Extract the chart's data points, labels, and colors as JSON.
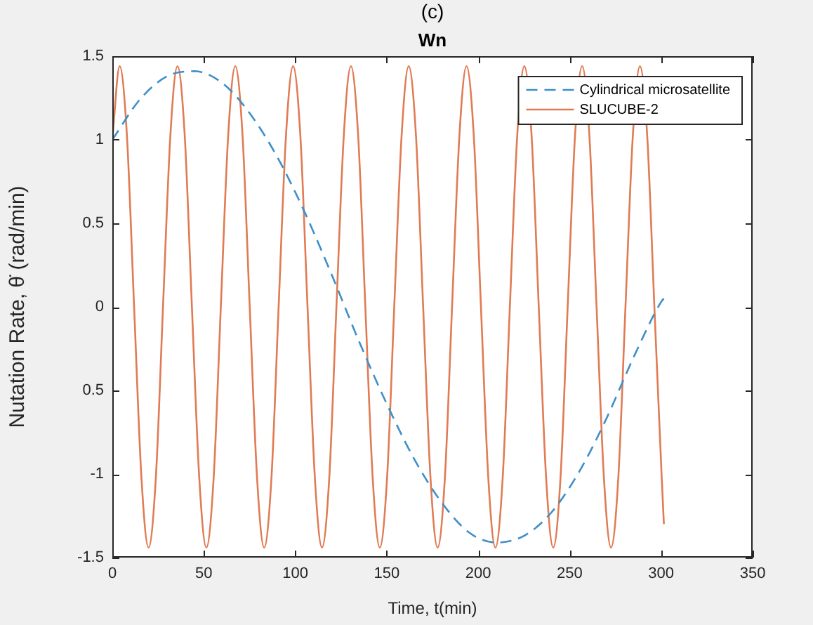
{
  "chart_data": {
    "type": "line",
    "title": "Wn",
    "xlabel": "Time, t(min)",
    "ylabel": "Nutation Rate, θ̇ (rad/min)",
    "annotations": [
      "(c)"
    ],
    "xlim": [
      0,
      350
    ],
    "xticks": [
      0,
      50,
      100,
      150,
      200,
      250,
      300,
      350
    ],
    "ylim": [
      -1.5,
      1.5
    ],
    "yticks": [
      -1.5,
      -1,
      {
        "value": -0.5,
        "label": "0.5"
      },
      0,
      0.5,
      1,
      1.5
    ],
    "grid": false,
    "legend": "top right",
    "marker": "none",
    "series": [
      {
        "name": "Cylindrical microsatellite",
        "color": "#3f8fc8",
        "line_style": "dashed",
        "x": [
          0,
          15,
          30,
          45,
          60,
          75,
          90,
          105,
          120,
          135,
          150,
          165,
          180,
          195,
          210,
          225,
          240,
          255,
          270,
          285,
          300,
          301.4
        ],
        "values": [
          1.0,
          1.24,
          1.38,
          1.41,
          1.34,
          1.16,
          0.9,
          0.57,
          0.19,
          -0.21,
          -0.58,
          -0.91,
          -1.17,
          -1.35,
          -1.41,
          -1.37,
          -1.23,
          -0.99,
          -0.67,
          -0.3,
          0.03,
          0.05
        ]
      },
      {
        "name": "SLUCUBE-2",
        "color": "#e07b54",
        "line_style": "solid",
        "x": [
          0,
          4.0,
          8.0,
          11.9,
          15.9,
          19.8,
          23.8,
          27.7,
          31.7,
          35.6,
          39.6,
          43.5,
          47.5,
          51.4,
          55.4,
          59.3,
          63.3,
          67.2,
          71.2,
          75.1,
          79.1,
          83.0,
          87.0,
          90.9,
          94.9,
          98.8,
          102.8,
          106.7,
          110.7,
          114.6,
          118.6,
          122.5,
          126.5,
          130.4,
          134.4,
          138.3,
          142.3,
          146.2,
          150.2,
          154.1,
          158.1,
          162.0,
          166.0,
          169.9,
          173.9,
          177.8,
          181.8,
          185.7,
          189.7,
          193.6,
          197.6,
          201.5,
          205.5,
          209.4,
          213.4,
          217.3,
          221.3,
          225.2,
          229.2,
          233.1,
          237.1,
          241.0,
          245.0,
          248.9,
          252.9,
          256.8,
          260.8,
          264.7,
          268.7,
          272.6,
          276.6,
          280.5,
          284.5,
          288.4,
          292.4,
          296.3,
          300.3,
          301.5
        ],
        "values": [
          1.0,
          1.44,
          1.02,
          0,
          -1.02,
          -1.44,
          -1.02,
          0,
          1.02,
          1.44,
          1.02,
          0,
          -1.02,
          -1.44,
          -1.02,
          0,
          1.02,
          1.44,
          1.02,
          0,
          -1.02,
          -1.44,
          -1.02,
          0,
          1.02,
          1.44,
          1.02,
          0,
          -1.02,
          -1.44,
          -1.02,
          0,
          1.02,
          1.44,
          1.02,
          0,
          -1.02,
          -1.44,
          -1.02,
          0,
          1.02,
          1.44,
          1.02,
          0,
          -1.02,
          -1.44,
          -1.02,
          0,
          1.02,
          1.44,
          1.02,
          0,
          -1.02,
          -1.44,
          -1.02,
          0,
          1.02,
          1.44,
          1.02,
          0,
          -1.02,
          -1.44,
          -1.02,
          0,
          1.02,
          1.44,
          1.02,
          0,
          -1.02,
          -1.44,
          -1.02,
          0,
          1.02,
          1.44,
          1.02,
          0,
          -1.02,
          -1.3
        ]
      }
    ]
  }
}
